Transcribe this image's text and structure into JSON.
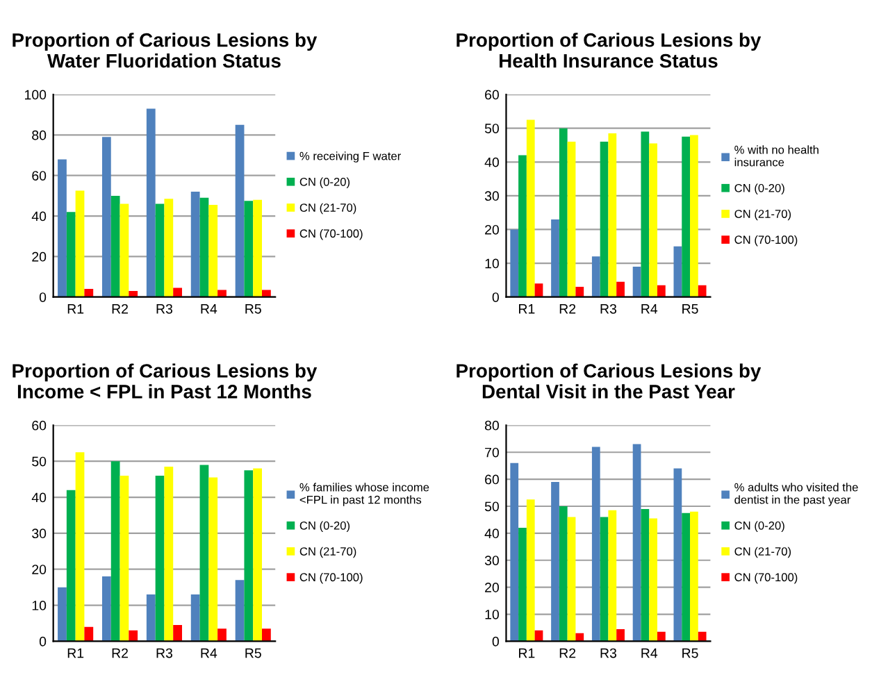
{
  "chart_data": [
    {
      "type": "bar",
      "title": "Proportion of Carious Lesions by\nWater Fluoridation Status",
      "categories": [
        "R1",
        "R2",
        "R3",
        "R4",
        "R5"
      ],
      "ylim": [
        0,
        100
      ],
      "yticks": [
        0,
        20,
        40,
        60,
        80,
        100
      ],
      "grid": "y",
      "legend": "right",
      "series": [
        {
          "name": "% receiving F water",
          "color": "#4f81bd",
          "values": [
            68,
            79,
            93,
            52,
            85
          ]
        },
        {
          "name": "CN (0-20)",
          "color": "#00b050",
          "values": [
            42,
            50,
            46,
            49,
            47.5
          ]
        },
        {
          "name": "CN (21-70)",
          "color": "#ffff00",
          "values": [
            52.5,
            46,
            48.5,
            45.5,
            48
          ]
        },
        {
          "name": "CN (70-100)",
          "color": "#ff0000",
          "values": [
            4,
            3,
            4.5,
            3.5,
            3.5
          ]
        }
      ]
    },
    {
      "type": "bar",
      "title": "Proportion of Carious Lesions by\nHealth Insurance Status",
      "categories": [
        "R1",
        "R2",
        "R3",
        "R4",
        "R5"
      ],
      "ylim": [
        0,
        60
      ],
      "yticks": [
        0,
        10,
        20,
        30,
        40,
        50,
        60
      ],
      "grid": "y",
      "legend": "right",
      "series": [
        {
          "name": "% with no health\ninsurance",
          "color": "#4f81bd",
          "values": [
            20,
            23,
            12,
            9,
            15
          ]
        },
        {
          "name": "CN (0-20)",
          "color": "#00b050",
          "values": [
            42,
            50,
            46,
            49,
            47.5
          ]
        },
        {
          "name": "CN (21-70)",
          "color": "#ffff00",
          "values": [
            52.5,
            46,
            48.5,
            45.5,
            48
          ]
        },
        {
          "name": "CN (70-100)",
          "color": "#ff0000",
          "values": [
            4,
            3,
            4.5,
            3.5,
            3.5
          ]
        }
      ]
    },
    {
      "type": "bar",
      "title": "Proportion of Carious Lesions by\nIncome < FPL in Past 12 Months",
      "categories": [
        "R1",
        "R2",
        "R3",
        "R4",
        "R5"
      ],
      "ylim": [
        0,
        60
      ],
      "yticks": [
        0,
        10,
        20,
        30,
        40,
        50,
        60
      ],
      "grid": "y",
      "legend": "right",
      "series": [
        {
          "name": "% families whose income\n<FPL in past 12 months",
          "color": "#4f81bd",
          "values": [
            15,
            18,
            13,
            13,
            17
          ]
        },
        {
          "name": "CN (0-20)",
          "color": "#00b050",
          "values": [
            42,
            50,
            46,
            49,
            47.5
          ]
        },
        {
          "name": "CN (21-70)",
          "color": "#ffff00",
          "values": [
            52.5,
            46,
            48.5,
            45.5,
            48
          ]
        },
        {
          "name": "CN (70-100)",
          "color": "#ff0000",
          "values": [
            4,
            3,
            4.5,
            3.5,
            3.5
          ]
        }
      ]
    },
    {
      "type": "bar",
      "title": "Proportion of Carious Lesions by\nDental Visit in the Past Year",
      "categories": [
        "R1",
        "R2",
        "R3",
        "R4",
        "R5"
      ],
      "ylim": [
        0,
        80
      ],
      "yticks": [
        0,
        10,
        20,
        30,
        40,
        50,
        60,
        70,
        80
      ],
      "grid": "y",
      "legend": "right",
      "series": [
        {
          "name": "% adults who visited the\ndentist in the past year",
          "color": "#4f81bd",
          "values": [
            66,
            59,
            72,
            73,
            64
          ]
        },
        {
          "name": "CN (0-20)",
          "color": "#00b050",
          "values": [
            42,
            50,
            46,
            49,
            47.5
          ]
        },
        {
          "name": "CN (21-70)",
          "color": "#ffff00",
          "values": [
            52.5,
            46,
            48.5,
            45.5,
            48
          ]
        },
        {
          "name": "CN (70-100)",
          "color": "#ff0000",
          "values": [
            4,
            3,
            4.5,
            3.5,
            3.5
          ]
        }
      ]
    }
  ]
}
